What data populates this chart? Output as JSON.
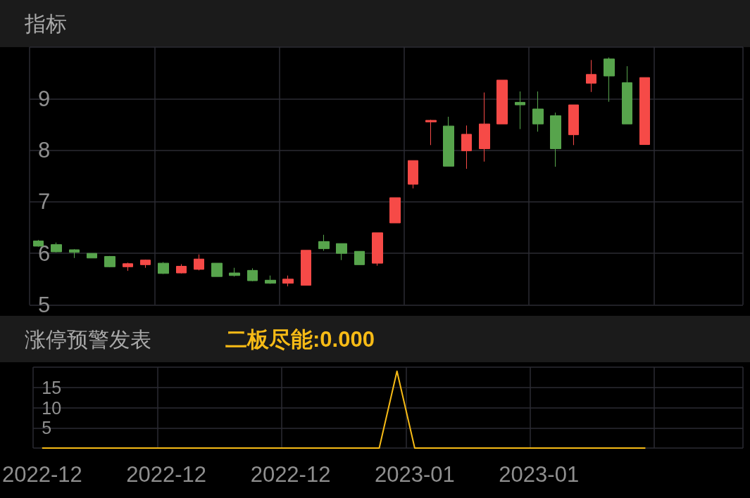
{
  "chart_data": [
    {
      "type": "candlestick",
      "title": "指标",
      "categories": [
        "2022-12",
        null,
        null,
        null,
        null,
        null,
        null,
        "2022-12",
        null,
        null,
        null,
        null,
        null,
        null,
        "2022-12",
        null,
        null,
        null,
        null,
        null,
        null,
        "2023-01",
        null,
        null,
        null,
        null,
        null,
        null,
        "2023-01",
        null,
        null,
        null,
        null,
        null,
        null,
        null,
        null,
        null,
        null,
        null
      ],
      "ohlc": [
        [
          6.24,
          6.26,
          6.13,
          6.14
        ],
        [
          6.17,
          6.21,
          6.02,
          6.03
        ],
        [
          6.07,
          6.08,
          5.91,
          6.02
        ],
        [
          6.0,
          6.0,
          5.91,
          5.91
        ],
        [
          5.94,
          5.95,
          5.73,
          5.74
        ],
        [
          5.74,
          5.82,
          5.66,
          5.8
        ],
        [
          5.78,
          5.88,
          5.72,
          5.87
        ],
        [
          5.81,
          5.83,
          5.6,
          5.61
        ],
        [
          5.62,
          5.79,
          5.61,
          5.75
        ],
        [
          5.69,
          5.98,
          5.67,
          5.89
        ],
        [
          5.81,
          5.81,
          5.55,
          5.55
        ],
        [
          5.62,
          5.72,
          5.55,
          5.57
        ],
        [
          5.67,
          5.71,
          5.46,
          5.47
        ],
        [
          5.48,
          5.57,
          5.41,
          5.42
        ],
        [
          5.42,
          5.57,
          5.36,
          5.5
        ],
        [
          5.38,
          6.06,
          5.38,
          6.06
        ],
        [
          6.23,
          6.36,
          6.05,
          6.09
        ],
        [
          6.19,
          6.19,
          5.87,
          6.0
        ],
        [
          6.04,
          6.04,
          5.78,
          5.78
        ],
        [
          5.81,
          6.4,
          5.76,
          6.4
        ],
        [
          6.59,
          7.08,
          6.59,
          7.08
        ],
        [
          7.34,
          7.8,
          7.26,
          7.8
        ],
        [
          8.55,
          8.59,
          8.1,
          8.58
        ],
        [
          8.47,
          8.65,
          7.69,
          7.69
        ],
        [
          7.99,
          8.48,
          7.64,
          8.31
        ],
        [
          8.03,
          9.12,
          7.78,
          8.51
        ],
        [
          8.51,
          9.36,
          8.51,
          9.36
        ],
        [
          8.93,
          9.14,
          8.41,
          8.88
        ],
        [
          8.8,
          9.14,
          8.36,
          8.51
        ],
        [
          8.67,
          8.73,
          7.68,
          8.03
        ],
        [
          8.3,
          8.88,
          8.1,
          8.88
        ],
        [
          9.3,
          9.75,
          9.13,
          9.47
        ],
        [
          9.77,
          9.8,
          8.94,
          9.44
        ],
        [
          9.31,
          9.63,
          8.51,
          8.51
        ],
        [
          8.11,
          9.41,
          8.11,
          9.41
        ],
        null,
        null,
        null,
        null,
        null
      ],
      "colors": [
        "#57a44c",
        "#57a44c",
        "#57a44c",
        "#57a44c",
        "#57a44c",
        "#f64a47",
        "#f64a47",
        "#57a44c",
        "#f64a47",
        "#f64a47",
        "#57a44c",
        "#57a44c",
        "#57a44c",
        "#57a44c",
        "#f64a47",
        "#f64a47",
        "#57a44c",
        "#57a44c",
        "#57a44c",
        "#f64a47",
        "#f64a47",
        "#f64a47",
        "#f64a47",
        "#57a44c",
        "#f64a47",
        "#f64a47",
        "#f64a47",
        "#57a44c",
        "#57a44c",
        "#57a44c",
        "#f64a47",
        "#f64a47",
        "#57a44c",
        "#57a44c",
        "#f64a47",
        null,
        null,
        null,
        null,
        null
      ],
      "ylim": [
        5,
        10
      ],
      "yticks": [
        5,
        6,
        7,
        8,
        9,
        {
          "value": 10,
          "label": null
        }
      ],
      "grid": true,
      "tick_labels": "y"
    },
    {
      "type": "line",
      "title": "涨停预警发表",
      "categories": [
        "2022-12",
        null,
        null,
        null,
        null,
        null,
        null,
        "2022-12",
        null,
        null,
        null,
        null,
        null,
        null,
        "2022-12",
        null,
        null,
        null,
        null,
        null,
        null,
        "2023-01",
        null,
        null,
        null,
        null,
        null,
        null,
        "2023-01",
        null,
        null,
        null,
        null,
        null,
        null,
        null,
        null,
        null,
        null,
        null
      ],
      "series": [
        {
          "name": "二板尽能:0.000",
          "color": "#f7bb16",
          "values": [
            0,
            0,
            0,
            0,
            0,
            0,
            0,
            0,
            0,
            0,
            0,
            0,
            0,
            0,
            0,
            0,
            0,
            0,
            0,
            0,
            19,
            0,
            0,
            0,
            0,
            0,
            0,
            0,
            0,
            0,
            0,
            0,
            0,
            0,
            0,
            null,
            null,
            null,
            null,
            null
          ]
        }
      ],
      "ylim": [
        0,
        20
      ],
      "yticks": [
        {
          "value": 0,
          "label": null
        },
        5,
        10,
        15,
        {
          "value": 20,
          "label": null
        }
      ],
      "grid": true,
      "marker": "none",
      "line_style": "solid",
      "legend": "top left"
    }
  ]
}
